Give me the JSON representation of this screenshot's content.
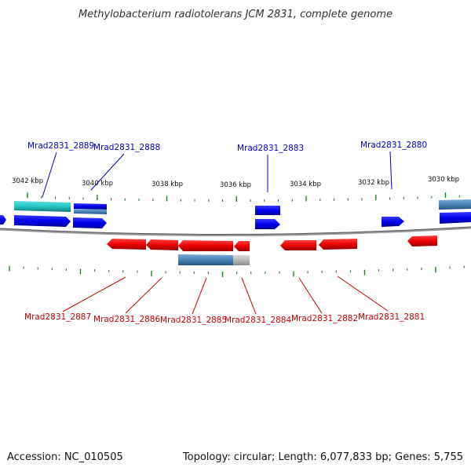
{
  "title": "Methylobacterium radiotolerans JCM 2831, complete genome",
  "footer": {
    "accession": "Accession: NC_010505",
    "topology": "Topology: circular; Length: 6,077,833 bp; Genes: 5,755"
  },
  "scale": {
    "labels": [
      "3042 kbp",
      "3040 kbp",
      "3038 kbp",
      "3036 kbp",
      "3034 kbp",
      "3032 kbp",
      "3030 kbp"
    ]
  },
  "genes_top": [
    {
      "id": "Mrad2831_2889"
    },
    {
      "id": "Mrad2831_2888"
    },
    {
      "id": "Mrad2831_2883"
    },
    {
      "id": "Mrad2831_2880"
    }
  ],
  "genes_bottom": [
    {
      "id": "Mrad2831_2887"
    },
    {
      "id": "Mrad2831_2886"
    },
    {
      "id": "Mrad2831_2885"
    },
    {
      "id": "Mrad2831_2884"
    },
    {
      "id": "Mrad2831_2882"
    },
    {
      "id": "Mrad2831_2881"
    }
  ],
  "colors": {
    "forward_strand": "#0000ee",
    "reverse_strand": "#ee0000",
    "rna_feature": "#22c4c4",
    "cds_feature": "#4a84b8",
    "backbone": "#777777",
    "tick": "#1a8a1a"
  }
}
